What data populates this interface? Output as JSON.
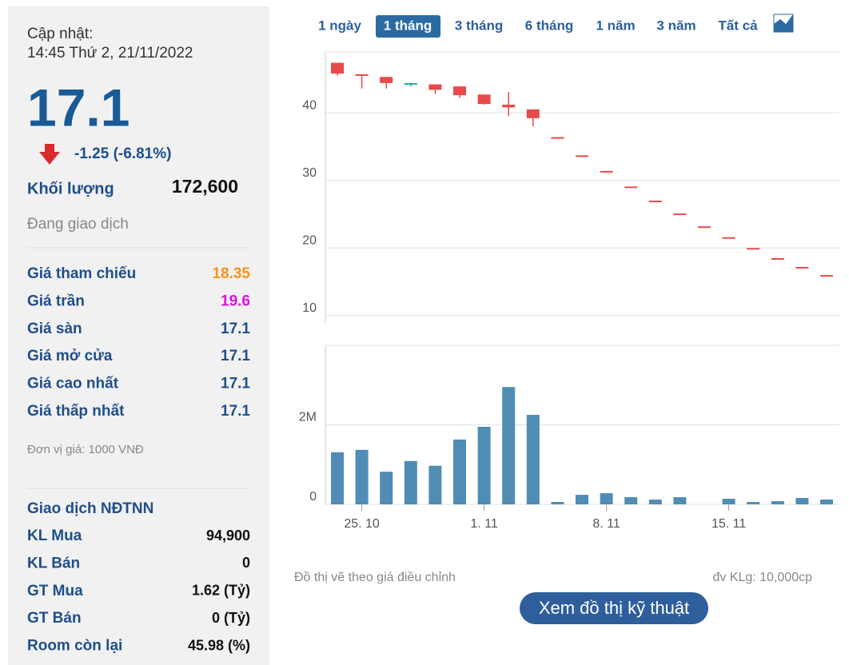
{
  "panel": {
    "update_label": "Cập nhật:",
    "update_time": "14:45 Thứ 2, 21/11/2022",
    "price": "17.1",
    "change": "-1.25 (-6.81%)",
    "volume_label": "Khối lượng",
    "volume": "172,600",
    "status": "Đang giao dịch",
    "prices": [
      [
        "Giá tham chiếu",
        "18.35"
      ],
      [
        "Giá trần",
        "19.6"
      ],
      [
        "Giá sàn",
        "17.1"
      ],
      [
        "Giá mở cửa",
        "17.1"
      ],
      [
        "Giá cao nhất",
        "17.1"
      ],
      [
        "Giá thấp nhất",
        "17.1"
      ]
    ],
    "unit": "Đơn vị giá: 1000 VNĐ",
    "foreign_title": "Giao dịch NĐTNN",
    "foreign": [
      [
        "KL Mua",
        "94,900"
      ],
      [
        "KL Bán",
        "0"
      ],
      [
        "GT Mua",
        "1.62 (Tỷ)"
      ],
      [
        "GT Bán",
        "0 (Tỷ)"
      ],
      [
        "Room còn lại",
        "45.98 (%)"
      ]
    ]
  },
  "tabs": [
    "1 ngày",
    "1 tháng",
    "3 tháng",
    "6 tháng",
    "1 năm",
    "3 năm",
    "Tất cả"
  ],
  "chart_data": [
    {
      "type": "candlestick",
      "open": [
        47.4,
        45.7,
        45.3,
        44.2,
        44.2,
        43.9,
        42.7,
        41.2,
        40.5,
        36.4,
        33.7,
        31.4,
        29.1,
        27,
        25.1,
        23.2,
        21.6,
        20,
        18.5,
        17.2,
        16
      ],
      "high": [
        47.4,
        45.7,
        45.3,
        44.4,
        44.2,
        43.9,
        42.7,
        43.1,
        40.5,
        36.4,
        33.7,
        31.4,
        29.1,
        27,
        25.1,
        23.2,
        21.6,
        20,
        18.5,
        17.2,
        16
      ],
      "low": [
        45.5,
        43.6,
        43.6,
        43.9,
        42.8,
        42.2,
        41.2,
        39.5,
        38,
        36.4,
        33.7,
        31.4,
        29.1,
        27,
        25.1,
        23.2,
        21.6,
        20,
        18.5,
        17.2,
        16
      ],
      "close": [
        45.8,
        45.7,
        44.4,
        44.4,
        43.4,
        42.6,
        41.3,
        40.8,
        39.2,
        36.4,
        33.7,
        31.4,
        29.1,
        27,
        25.1,
        23.2,
        21.6,
        20,
        18.5,
        17.2,
        16
      ],
      "up_color": "#26a69a",
      "down_color": "#e84a4a",
      "ylim": [
        8.8,
        49
      ],
      "yticks": [
        10,
        20,
        30,
        40
      ],
      "grid": true
    },
    {
      "type": "bar",
      "categories": [
        null,
        "25. 10",
        null,
        null,
        null,
        null,
        "1. 11",
        null,
        null,
        null,
        null,
        "8. 11",
        null,
        null,
        null,
        null,
        "15. 11",
        null,
        null,
        null,
        null
      ],
      "values": [
        1310000,
        1370000,
        820000,
        1090000,
        970000,
        1630000,
        1950000,
        2950000,
        2250000,
        60000,
        240000,
        280000,
        180000,
        120000,
        180000,
        0,
        140000,
        60000,
        80000,
        160000,
        120000
      ],
      "color": "#4f8db5",
      "ylim": [
        0,
        4000000
      ],
      "yticks": [
        0,
        {
          "value": 2000000,
          "label": "2M"
        }
      ],
      "grid": true
    }
  ],
  "footer": {
    "note": "Đồ thị vẽ theo giá điều chỉnh",
    "unit": "đv KLg: 10,000cp",
    "button": "Xem đồ thị kỹ thuật"
  }
}
